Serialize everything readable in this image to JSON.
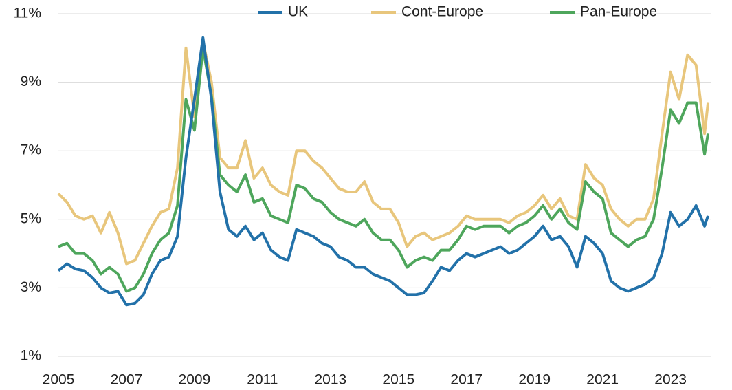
{
  "chart_data": {
    "type": "line",
    "x": [
      2005,
      2005.25,
      2005.5,
      2005.75,
      2006,
      2006.25,
      2006.5,
      2006.75,
      2007,
      2007.25,
      2007.5,
      2007.75,
      2008,
      2008.25,
      2008.5,
      2008.75,
      2009,
      2009.25,
      2009.5,
      2009.75,
      2010,
      2010.25,
      2010.5,
      2010.75,
      2011,
      2011.25,
      2011.5,
      2011.75,
      2012,
      2012.25,
      2012.5,
      2012.75,
      2013,
      2013.25,
      2013.5,
      2013.75,
      2014,
      2014.25,
      2014.5,
      2014.75,
      2015,
      2015.25,
      2015.5,
      2015.75,
      2016,
      2016.25,
      2016.5,
      2016.75,
      2017,
      2017.25,
      2017.5,
      2017.75,
      2018,
      2018.25,
      2018.5,
      2018.75,
      2019,
      2019.25,
      2019.5,
      2019.75,
      2020,
      2020.25,
      2020.5,
      2020.75,
      2021,
      2021.25,
      2021.5,
      2021.75,
      2022,
      2022.25,
      2022.5,
      2022.75,
      2023,
      2023.25,
      2023.5,
      2023.75,
      2024,
      2024.1
    ],
    "series": [
      {
        "name": "UK",
        "color": "#2271a9",
        "values": [
          3.5,
          3.7,
          3.55,
          3.5,
          3.3,
          3.0,
          2.85,
          2.9,
          2.5,
          2.55,
          2.8,
          3.4,
          3.8,
          3.9,
          4.5,
          6.8,
          8.5,
          10.3,
          8.5,
          5.8,
          4.7,
          4.5,
          4.8,
          4.4,
          4.6,
          4.1,
          3.9,
          3.8,
          4.7,
          4.6,
          4.5,
          4.3,
          4.2,
          3.9,
          3.8,
          3.6,
          3.6,
          3.4,
          3.3,
          3.2,
          3.0,
          2.8,
          2.8,
          2.85,
          3.2,
          3.6,
          3.5,
          3.8,
          4.0,
          3.9,
          4.0,
          4.1,
          4.2,
          4.0,
          4.1,
          4.3,
          4.5,
          4.8,
          4.4,
          4.5,
          4.2,
          3.6,
          4.5,
          4.3,
          4.0,
          3.2,
          3.0,
          2.9,
          3.0,
          3.1,
          3.3,
          4.0,
          5.2,
          4.8,
          5.0,
          5.4,
          4.8,
          5.1
        ]
      },
      {
        "name": "Cont-Europe",
        "color": "#e8c67c",
        "values": [
          5.75,
          5.5,
          5.1,
          5.0,
          5.1,
          4.6,
          5.2,
          4.6,
          3.7,
          3.8,
          4.3,
          4.8,
          5.2,
          5.3,
          6.5,
          10.0,
          8.0,
          10.2,
          9.0,
          6.8,
          6.5,
          6.5,
          7.3,
          6.2,
          6.5,
          6.0,
          5.8,
          5.7,
          7.0,
          7.0,
          6.7,
          6.5,
          6.2,
          5.9,
          5.8,
          5.8,
          6.1,
          5.5,
          5.3,
          5.3,
          4.9,
          4.2,
          4.5,
          4.6,
          4.4,
          4.5,
          4.6,
          4.8,
          5.1,
          5.0,
          5.0,
          5.0,
          5.0,
          4.9,
          5.1,
          5.2,
          5.4,
          5.7,
          5.3,
          5.6,
          5.1,
          5.0,
          6.6,
          6.2,
          6.0,
          5.3,
          5.0,
          4.8,
          5.0,
          5.0,
          5.6,
          7.5,
          9.3,
          8.5,
          9.8,
          9.5,
          7.5,
          8.4
        ]
      },
      {
        "name": "Pan-Europe",
        "color": "#4ea65c",
        "values": [
          4.2,
          4.3,
          4.0,
          4.0,
          3.8,
          3.4,
          3.6,
          3.4,
          2.9,
          3.0,
          3.4,
          4.0,
          4.4,
          4.6,
          5.4,
          8.5,
          7.6,
          10.0,
          8.6,
          6.3,
          6.0,
          5.8,
          6.3,
          5.5,
          5.6,
          5.1,
          5.0,
          4.9,
          6.0,
          5.9,
          5.6,
          5.5,
          5.2,
          5.0,
          4.9,
          4.8,
          5.0,
          4.6,
          4.4,
          4.4,
          4.1,
          3.6,
          3.8,
          3.9,
          3.8,
          4.1,
          4.1,
          4.4,
          4.8,
          4.7,
          4.8,
          4.8,
          4.8,
          4.6,
          4.8,
          4.9,
          5.1,
          5.4,
          5.0,
          5.3,
          4.9,
          4.7,
          6.1,
          5.8,
          5.6,
          4.6,
          4.4,
          4.2,
          4.4,
          4.5,
          5.0,
          6.5,
          8.2,
          7.8,
          8.4,
          8.4,
          6.9,
          7.5
        ]
      }
    ],
    "xlim": [
      2005,
      2024.2
    ],
    "xticks": [
      2005,
      2007,
      2009,
      2011,
      2013,
      2015,
      2017,
      2019,
      2021,
      2023
    ],
    "ylim": [
      1,
      11
    ],
    "yticks": [
      {
        "value": 1,
        "label": "1%"
      },
      {
        "value": 3,
        "label": "3%"
      },
      {
        "value": 5,
        "label": "5%"
      },
      {
        "value": 7,
        "label": "7%"
      },
      {
        "value": 9,
        "label": "9%"
      },
      {
        "value": 11,
        "label": "11%"
      }
    ],
    "grid": true,
    "legend": "top"
  }
}
